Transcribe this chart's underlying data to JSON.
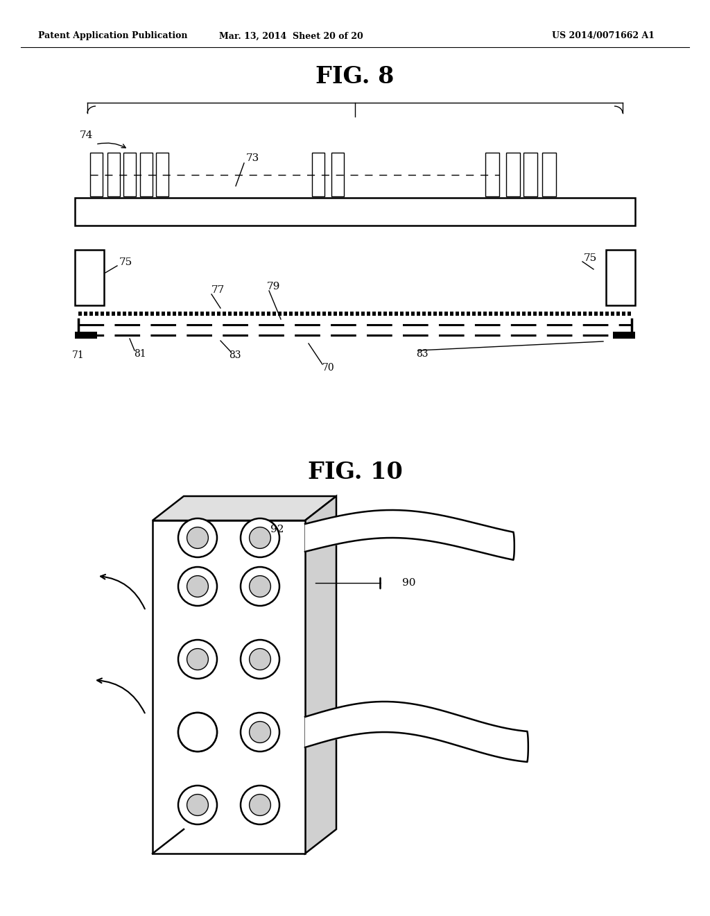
{
  "background_color": "#ffffff",
  "header_left": "Patent Application Publication",
  "header_mid": "Mar. 13, 2014  Sheet 20 of 20",
  "header_right": "US 2014/0071662 A1",
  "fig8_title": "FIG. 8",
  "fig10_title": "FIG. 10",
  "line_color": "#000000"
}
